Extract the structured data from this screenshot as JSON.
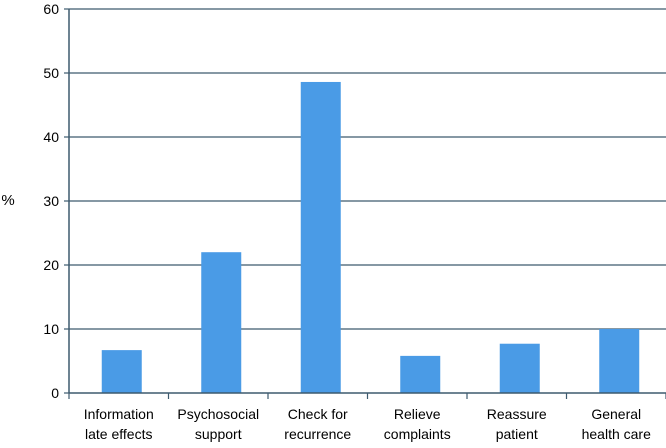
{
  "chart_data": {
    "type": "bar",
    "title": "",
    "xlabel": "",
    "ylabel": "%",
    "ylim": [
      0,
      60
    ],
    "yticks": [
      0,
      10,
      20,
      30,
      40,
      50,
      60
    ],
    "grid": true,
    "categories": [
      [
        "Information",
        "late effects"
      ],
      [
        "Psychosocial",
        "support"
      ],
      [
        "Check for",
        "recurrence"
      ],
      [
        "Relieve",
        "complaints"
      ],
      [
        "Reassure",
        "patient"
      ],
      [
        "General",
        "health care"
      ]
    ],
    "values": [
      6.7,
      22,
      48.6,
      5.8,
      7.7,
      10
    ],
    "bar_color": "#4a9be6",
    "grid_color": "#3d5a6e",
    "axis_color": "#3d5a6e"
  }
}
